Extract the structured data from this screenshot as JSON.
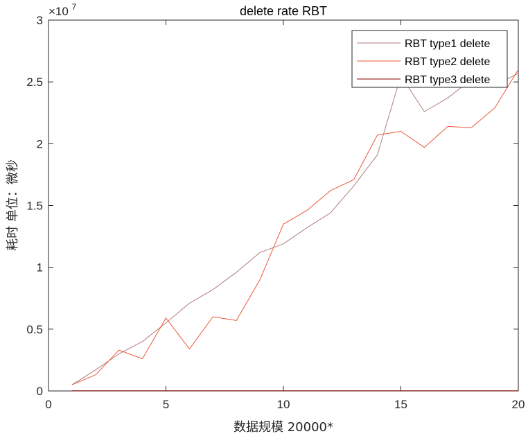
{
  "chart_data": {
    "type": "line",
    "title": "delete rate  RBT",
    "xlabel": "数据规模 20000*",
    "ylabel": "耗时 单位：微秒",
    "xlim": [
      0,
      20
    ],
    "ylim": [
      0,
      3
    ],
    "y_exponent_label": "×10",
    "y_exponent_power": "7",
    "x_ticks": [
      "0",
      "5",
      "10",
      "15",
      "20"
    ],
    "y_ticks": [
      "0",
      "0.5",
      "1",
      "1.5",
      "2",
      "2.5",
      "3"
    ],
    "x_tick_values": [
      0,
      5,
      10,
      15,
      20
    ],
    "y_tick_values": [
      0,
      0.5,
      1,
      1.5,
      2,
      2.5,
      3
    ],
    "legend_position": "top-right",
    "x": [
      1,
      2,
      3,
      4,
      5,
      6,
      7,
      8,
      9,
      10,
      11,
      12,
      13,
      14,
      15,
      16,
      17,
      18,
      19,
      20
    ],
    "series": [
      {
        "name": "RBT type1 delete",
        "color": "#b07d7d",
        "values": [
          0.05,
          0.17,
          0.3,
          0.4,
          0.55,
          0.71,
          0.82,
          0.96,
          1.12,
          1.19,
          1.32,
          1.44,
          1.66,
          1.91,
          2.55,
          2.26,
          2.37,
          2.52,
          2.47,
          2.57
        ]
      },
      {
        "name": "RBT type2 delete",
        "color": "#f0553a",
        "values": [
          0.05,
          0.13,
          0.33,
          0.26,
          0.59,
          0.34,
          0.6,
          0.57,
          0.9,
          1.35,
          1.46,
          1.62,
          1.71,
          2.07,
          2.1,
          1.97,
          2.14,
          2.13,
          2.29,
          2.6
        ]
      },
      {
        "name": "RBT type3 delete",
        "color": "#8b0000",
        "values": [
          0.001,
          0.001,
          0.001,
          0.001,
          0.001,
          0.001,
          0.001,
          0.001,
          0.001,
          0.001,
          0.001,
          0.001,
          0.001,
          0.001,
          0.001,
          0.001,
          0.001,
          0.001,
          0.001,
          0.001
        ]
      }
    ]
  }
}
